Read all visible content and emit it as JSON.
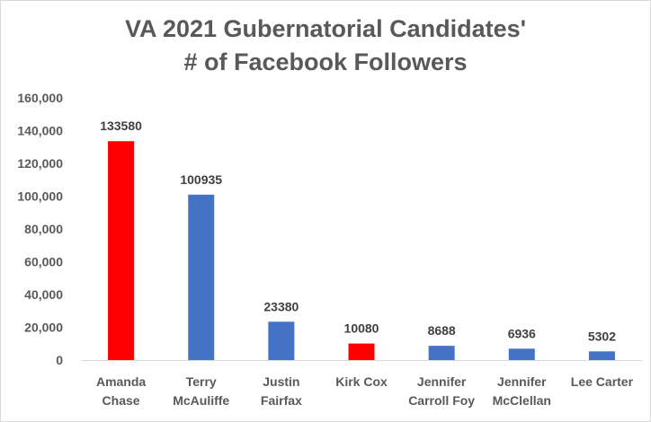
{
  "chart_data": {
    "type": "bar",
    "title_lines": [
      "VA 2021 Gubernatorial Candidates'",
      "# of Facebook Followers"
    ],
    "categories": [
      [
        "Amanda",
        "Chase"
      ],
      [
        "Terry",
        "McAuliffe"
      ],
      [
        "Justin",
        "Fairfax"
      ],
      [
        "Kirk Cox"
      ],
      [
        "Jennifer",
        "Carroll Foy"
      ],
      [
        "Jennifer",
        "McClellan"
      ],
      [
        "Lee Carter"
      ]
    ],
    "values": [
      133580,
      100935,
      23380,
      10080,
      8688,
      6936,
      5302
    ],
    "data_labels": [
      "133580",
      "100935",
      "23380",
      "10080",
      "8688",
      "6936",
      "5302"
    ],
    "bar_colors": [
      "#ff0000",
      "#4472c4",
      "#4472c4",
      "#ff0000",
      "#4472c4",
      "#4472c4",
      "#4472c4"
    ],
    "ylim": [
      0,
      160000
    ],
    "yticks": [
      0,
      20000,
      40000,
      60000,
      80000,
      100000,
      120000,
      140000,
      160000
    ],
    "ytick_labels": [
      "0",
      "20,000",
      "40,000",
      "60,000",
      "80,000",
      "100,000",
      "120,000",
      "140,000",
      "160,000"
    ],
    "grid": false,
    "legend": "none"
  }
}
